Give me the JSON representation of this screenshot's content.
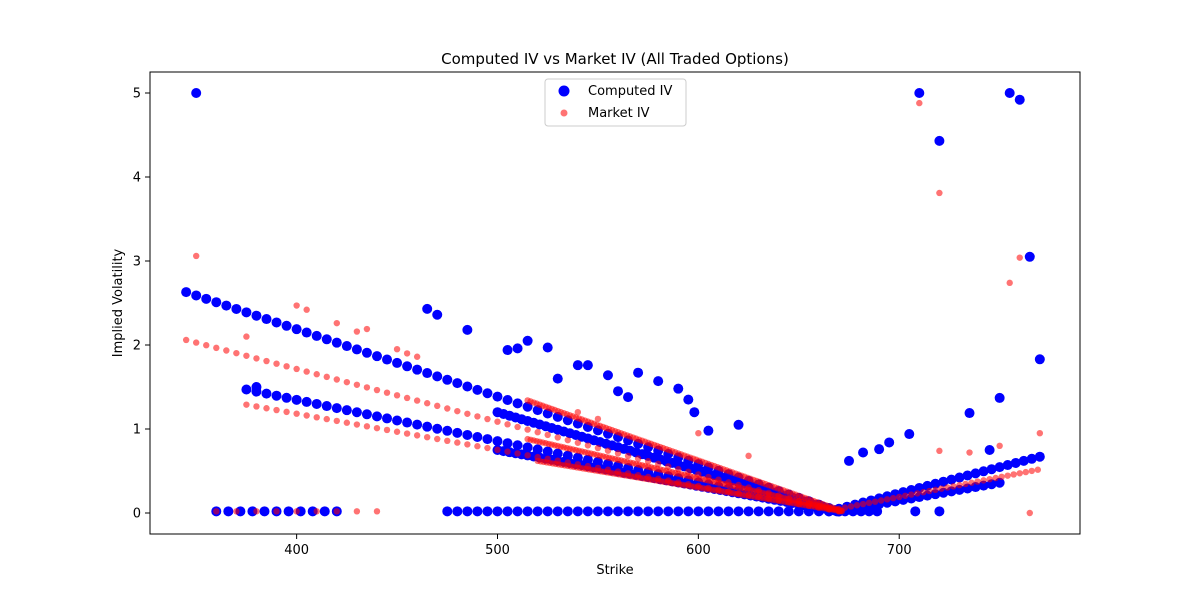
{
  "chart_data": {
    "type": "scatter",
    "title": "Computed IV vs Market IV (All Traded Options)",
    "xlabel": "Strike",
    "ylabel": "Implied Volatility",
    "xlim": [
      327,
      790
    ],
    "ylim": [
      -0.25,
      5.25
    ],
    "xticks": [
      400,
      500,
      600,
      700
    ],
    "yticks": [
      0,
      1,
      2,
      3,
      4,
      5
    ],
    "legend_position": "upper center",
    "grid": false,
    "colors": {
      "computed": "#0000ff",
      "market": "#ff0000"
    },
    "series": [
      {
        "name": "Computed IV",
        "color": "#0000ff",
        "marker": "large-circle",
        "generator": {
          "bands": [
            {
              "x_start": 345,
              "x_end": 670,
              "y_start": 2.63,
              "y_end": 0.02,
              "step": 5
            },
            {
              "x_start": 375,
              "x_end": 670,
              "y_start": 1.47,
              "y_end": 0.02,
              "step": 5
            },
            {
              "x_start": 500,
              "x_end": 670,
              "y_start": 1.2,
              "y_end": 0.02,
              "step": 3
            },
            {
              "x_start": 500,
              "x_end": 670,
              "y_start": 0.75,
              "y_end": 0.02,
              "step": 3
            },
            {
              "x_start": 670,
              "x_end": 770,
              "y_start": 0.05,
              "y_end": 0.67,
              "step": 4
            },
            {
              "x_start": 670,
              "x_end": 750,
              "y_start": 0.02,
              "y_end": 0.36,
              "step": 4
            }
          ],
          "zero_line": [
            360,
            420,
            6
          ]
        },
        "extra_points": [
          {
            "x": 350,
            "y": 5.0
          },
          {
            "x": 710,
            "y": 5.0
          },
          {
            "x": 755,
            "y": 5.0
          },
          {
            "x": 760,
            "y": 4.92
          },
          {
            "x": 720,
            "y": 4.43
          },
          {
            "x": 765,
            "y": 3.05
          },
          {
            "x": 770,
            "y": 1.83
          },
          {
            "x": 750,
            "y": 1.37
          },
          {
            "x": 735,
            "y": 1.19
          },
          {
            "x": 465,
            "y": 2.43
          },
          {
            "x": 470,
            "y": 2.36
          },
          {
            "x": 485,
            "y": 2.18
          },
          {
            "x": 515,
            "y": 2.05
          },
          {
            "x": 525,
            "y": 1.97
          },
          {
            "x": 505,
            "y": 1.94
          },
          {
            "x": 510,
            "y": 1.96
          },
          {
            "x": 540,
            "y": 1.76
          },
          {
            "x": 545,
            "y": 1.76
          },
          {
            "x": 570,
            "y": 1.67
          },
          {
            "x": 555,
            "y": 1.64
          },
          {
            "x": 580,
            "y": 1.57
          },
          {
            "x": 590,
            "y": 1.48
          },
          {
            "x": 595,
            "y": 1.35
          },
          {
            "x": 598,
            "y": 1.2
          },
          {
            "x": 605,
            "y": 0.98
          },
          {
            "x": 620,
            "y": 1.05
          },
          {
            "x": 705,
            "y": 0.94
          },
          {
            "x": 695,
            "y": 0.84
          },
          {
            "x": 690,
            "y": 0.76
          },
          {
            "x": 682,
            "y": 0.72
          },
          {
            "x": 675,
            "y": 0.62
          },
          {
            "x": 745,
            "y": 0.75
          },
          {
            "x": 720,
            "y": 0.02
          },
          {
            "x": 708,
            "y": 0.02
          },
          {
            "x": 380,
            "y": 1.5
          },
          {
            "x": 565,
            "y": 1.38
          },
          {
            "x": 530,
            "y": 1.6
          },
          {
            "x": 560,
            "y": 1.45
          }
        ]
      },
      {
        "name": "Market IV",
        "color": "#ff0000",
        "marker": "small-circle",
        "generator": {
          "bands": [
            {
              "x_start": 345,
              "x_end": 670,
              "y_start": 2.06,
              "y_end": 0.02,
              "step": 5
            },
            {
              "x_start": 375,
              "x_end": 670,
              "y_start": 1.29,
              "y_end": 0.02,
              "step": 5
            },
            {
              "x_start": 515,
              "x_end": 672,
              "y_start": 1.34,
              "y_end": 0.02,
              "step": 1.5
            },
            {
              "x_start": 515,
              "x_end": 672,
              "y_start": 0.88,
              "y_end": 0.02,
              "step": 1.5
            },
            {
              "x_start": 520,
              "x_end": 672,
              "y_start": 0.62,
              "y_end": 0.02,
              "step": 1.5
            },
            {
              "x_start": 670,
              "x_end": 770,
              "y_start": 0.05,
              "y_end": 0.52,
              "step": 3
            }
          ],
          "zero_line": [
            360,
            440,
            10
          ]
        },
        "extra_points": [
          {
            "x": 350,
            "y": 3.06
          },
          {
            "x": 710,
            "y": 4.88
          },
          {
            "x": 720,
            "y": 3.81
          },
          {
            "x": 760,
            "y": 3.04
          },
          {
            "x": 755,
            "y": 2.74
          },
          {
            "x": 400,
            "y": 2.47
          },
          {
            "x": 405,
            "y": 2.42
          },
          {
            "x": 420,
            "y": 2.26
          },
          {
            "x": 430,
            "y": 2.16
          },
          {
            "x": 435,
            "y": 2.19
          },
          {
            "x": 450,
            "y": 1.95
          },
          {
            "x": 455,
            "y": 1.9
          },
          {
            "x": 460,
            "y": 1.86
          },
          {
            "x": 770,
            "y": 0.95
          },
          {
            "x": 750,
            "y": 0.8
          },
          {
            "x": 735,
            "y": 0.72
          },
          {
            "x": 765,
            "y": 0.0
          },
          {
            "x": 720,
            "y": 0.74
          },
          {
            "x": 375,
            "y": 2.1
          },
          {
            "x": 540,
            "y": 1.2
          },
          {
            "x": 550,
            "y": 1.12
          },
          {
            "x": 600,
            "y": 0.95
          },
          {
            "x": 625,
            "y": 0.68
          }
        ]
      }
    ]
  }
}
